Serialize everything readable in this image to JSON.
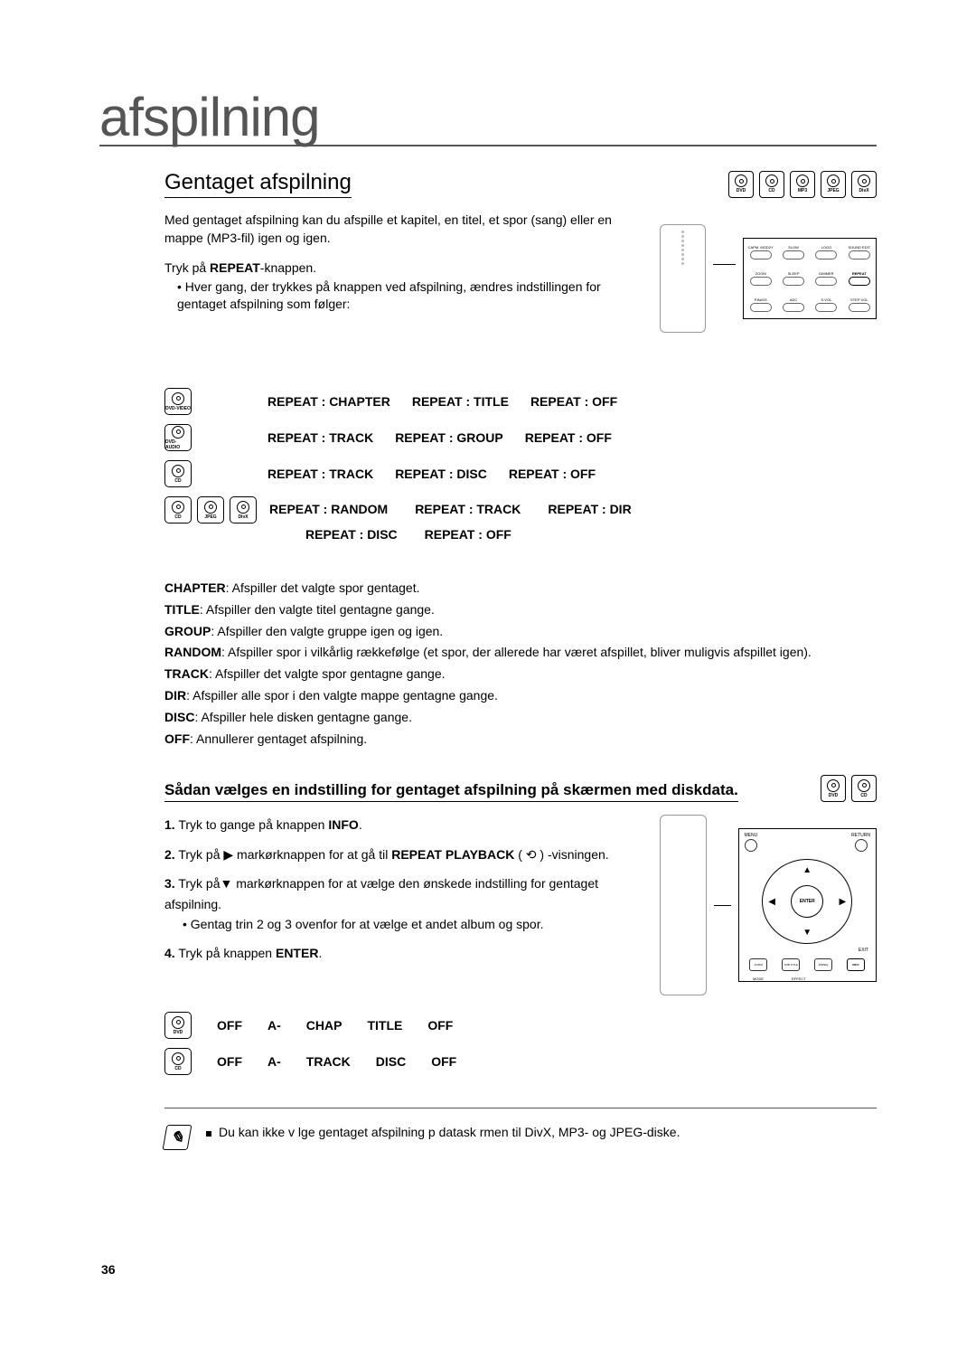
{
  "mainTitle": "afspilning",
  "section1": {
    "title": "Gentaget afspilning",
    "discIcons": [
      "DVD",
      "CD",
      "MP3",
      "JPEG",
      "DivX"
    ],
    "intro": "Med gentaget afspilning kan du afspille et kapitel, en titel, et spor (sang) eller en mappe (MP3-fil) igen og igen.",
    "step1": "Tryk på REPEAT-knappen.",
    "step1sub": "• Hver gang, der trykkes på knappen ved afspilning, ændres indstillingen for gentaget afspilning som følger:",
    "buttonGrid": [
      [
        "CAPM. MOD2Y",
        "SLOW",
        "LOGO",
        "SOUND EDIT"
      ],
      [
        "ZOOM",
        "SLEEP",
        "DIMMER",
        "REPEAT"
      ],
      [
        "P.BASS",
        "ADC",
        "S.VOL",
        "STEP VOL"
      ]
    ],
    "highlightIndex": 7
  },
  "repeatRows": [
    {
      "badges": [
        "DVD-VIDEO"
      ],
      "cycle": [
        "REPEAT : CHAPTER",
        "REPEAT : TITLE",
        "REPEAT : OFF"
      ]
    },
    {
      "badges": [
        "DVD-AUDIO"
      ],
      "cycle": [
        "REPEAT : TRACK",
        "REPEAT : GROUP",
        "REPEAT : OFF"
      ]
    },
    {
      "badges": [
        "CD"
      ],
      "cycle": [
        "REPEAT : TRACK",
        "REPEAT : DISC",
        "REPEAT : OFF"
      ]
    }
  ],
  "repeatMulti": {
    "badges": [
      "CD",
      "JPEG",
      "DivX"
    ],
    "row1": [
      "REPEAT : RANDOM",
      "REPEAT : TRACK",
      "REPEAT : DIR"
    ],
    "row2": [
      "REPEAT : DISC",
      "REPEAT : OFF"
    ]
  },
  "definitions": [
    {
      "term": "CHAPTER",
      "desc": ": Afspiller det valgte spor gentaget."
    },
    {
      "term": "TITLE",
      "desc": ": Afspiller den valgte titel gentagne gange."
    },
    {
      "term": "GROUP",
      "desc": ": Afspiller den valgte gruppe igen og igen."
    },
    {
      "term": "RANDOM",
      "desc": ": Afspiller spor i vilkårlig rækkefølge (et spor, der allerede har været afspillet, bliver muligvis afspillet igen)."
    },
    {
      "term": "TRACK",
      "desc": ": Afspiller det valgte spor gentagne gange."
    },
    {
      "term": "DIR",
      "desc": ": Afspiller alle spor i den valgte mappe gentagne gange."
    },
    {
      "term": "DISC",
      "desc": ": Afspiller hele disken gentagne gange."
    },
    {
      "term": "OFF",
      "desc": ": Annullerer gentaget afspilning."
    }
  ],
  "section2": {
    "title": "Sådan vælges en indstilling for gentaget afspilning på skærmen med diskdata.",
    "discIcons": [
      "DVD",
      "CD"
    ],
    "steps": [
      {
        "n": "1.",
        "t": "Tryk to gange på knappen ",
        "b": "INFO",
        "t2": "."
      },
      {
        "n": "2.",
        "t": "Tryk på ▶ markørknappen for at gå til ",
        "b": "REPEAT PLAYBACK",
        "t2": " ( ⟲ ) -visningen."
      },
      {
        "n": "3.",
        "t": "Tryk på▼ markørknappen  for at vælge den ønskede indstilling for gentaget afspilning.",
        "sub": "• Gentag trin 2 og 3 ovenfor for at vælge et andet album og spor."
      },
      {
        "n": "4.",
        "t": "Tryk på knappen ",
        "b": "ENTER",
        "t2": "."
      }
    ],
    "navLabels": {
      "menu": "MENU",
      "return": "RETURN",
      "enter": "ENTER",
      "exit": "EXIT"
    },
    "navBottomSquares": [
      "AUDIO",
      "SUB TITLE",
      "DSPEQ",
      "INFO"
    ],
    "navBottomLabels": [
      "MODE",
      "EFFECT",
      "",
      ""
    ],
    "navHighlightIndex": 3
  },
  "resultRows": [
    {
      "badge": "DVD",
      "cells": [
        "OFF",
        "A-",
        "CHAP",
        "TITLE",
        "OFF"
      ]
    },
    {
      "badge": "CD",
      "cells": [
        "OFF",
        "A-",
        "TRACK",
        "DISC",
        "OFF"
      ]
    }
  ],
  "note": "Du kan ikke v lge gentaget afspilning p  datask rmen til DivX, MP3- og JPEG-diske.",
  "pageNumber": "36"
}
